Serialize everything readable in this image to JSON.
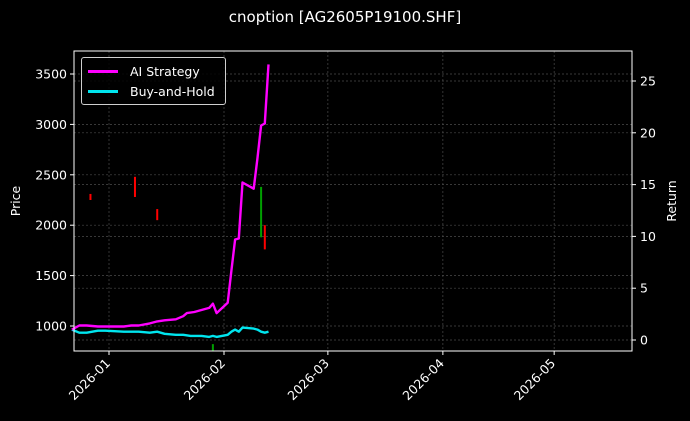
{
  "title": "cnoption [AG2605P19100.SHF]",
  "colors": {
    "background": "#000000",
    "ai_strategy": "#ff00ff",
    "buy_and_hold": "#00e5ee",
    "candle_up": "#00a000",
    "candle_down": "#ff0000",
    "grid": "#555555",
    "axis": "#ffffff"
  },
  "legend": {
    "items": [
      {
        "label": "AI Strategy",
        "color": "#ff00ff"
      },
      {
        "label": "Buy-and-Hold",
        "color": "#00e5ee"
      }
    ]
  },
  "chart_data": {
    "type": "line",
    "title": "cnoption [AG2605P19100.SHF]",
    "xlabel": "",
    "ylabel": "Price",
    "y2label": "Return",
    "x_ticks": [
      "2026-01",
      "2026-02",
      "2026-03",
      "2026-04",
      "2026-05"
    ],
    "y_ticks": [
      1000,
      1500,
      2000,
      2500,
      3000,
      3500
    ],
    "y2_ticks": [
      0,
      5,
      10,
      15,
      20,
      25
    ],
    "ylim": [
      750,
      3720
    ],
    "y2lim": [
      -1.0,
      27.5
    ],
    "grid": true,
    "legend_position": "upper left",
    "series": [
      {
        "name": "AI Strategy",
        "axis": "right",
        "x": [
          "2025-12-22",
          "2025-12-24",
          "2025-12-26",
          "2025-12-29",
          "2025-12-31",
          "2026-01-05",
          "2026-01-07",
          "2026-01-09",
          "2026-01-12",
          "2026-01-14",
          "2026-01-16",
          "2026-01-19",
          "2026-01-21",
          "2026-01-22",
          "2026-01-24",
          "2026-01-27",
          "2026-01-28",
          "2026-01-29",
          "2026-01-30",
          "2026-02-02",
          "2026-02-03",
          "2026-02-04",
          "2026-02-05",
          "2026-02-06",
          "2026-02-09",
          "2026-02-10",
          "2026-02-11",
          "2026-02-12",
          "2026-02-13"
        ],
        "values": [
          1.0,
          1.4,
          1.4,
          1.3,
          1.3,
          1.3,
          1.4,
          1.4,
          1.6,
          1.8,
          1.9,
          2.0,
          2.3,
          2.6,
          2.7,
          3.0,
          3.1,
          3.5,
          2.6,
          3.6,
          6.7,
          9.7,
          9.8,
          15.2,
          14.6,
          17.5,
          20.7,
          20.9,
          26.6
        ]
      },
      {
        "name": "Buy-and-Hold",
        "axis": "right",
        "x": [
          "2025-12-22",
          "2025-12-24",
          "2025-12-26",
          "2025-12-29",
          "2025-12-31",
          "2026-01-05",
          "2026-01-07",
          "2026-01-09",
          "2026-01-12",
          "2026-01-14",
          "2026-01-16",
          "2026-01-19",
          "2026-01-21",
          "2026-01-23",
          "2026-01-26",
          "2026-01-28",
          "2026-01-29",
          "2026-01-30",
          "2026-02-02",
          "2026-02-03",
          "2026-02-04",
          "2026-02-05",
          "2026-02-06",
          "2026-02-09",
          "2026-02-10",
          "2026-02-11",
          "2026-02-12",
          "2026-02-13"
        ],
        "values": [
          1.0,
          0.7,
          0.7,
          0.9,
          0.9,
          0.8,
          0.8,
          0.8,
          0.7,
          0.8,
          0.6,
          0.5,
          0.5,
          0.4,
          0.4,
          0.3,
          0.4,
          0.3,
          0.5,
          0.8,
          1.0,
          0.8,
          1.2,
          1.1,
          1.0,
          0.8,
          0.7,
          0.8
        ]
      }
    ],
    "candles": {
      "axis": "left",
      "items": [
        {
          "x": "2025-12-27",
          "low": 2250,
          "high": 2310,
          "dir": "down"
        },
        {
          "x": "2026-01-08",
          "low": 2280,
          "high": 2480,
          "dir": "down"
        },
        {
          "x": "2026-01-14",
          "low": 2050,
          "high": 2160,
          "dir": "down"
        },
        {
          "x": "2026-01-29",
          "low": 750,
          "high": 820,
          "dir": "up"
        },
        {
          "x": "2026-02-11",
          "low": 1880,
          "high": 2380,
          "dir": "up"
        },
        {
          "x": "2026-02-12",
          "low": 1760,
          "high": 2000,
          "dir": "down"
        }
      ]
    }
  }
}
